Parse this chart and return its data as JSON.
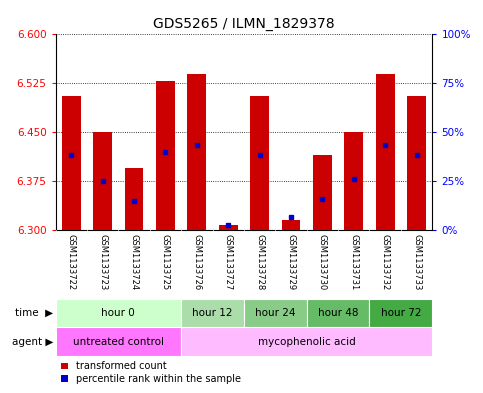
{
  "title": "GDS5265 / ILMN_1829378",
  "samples": [
    "GSM1133722",
    "GSM1133723",
    "GSM1133724",
    "GSM1133725",
    "GSM1133726",
    "GSM1133727",
    "GSM1133728",
    "GSM1133729",
    "GSM1133730",
    "GSM1133731",
    "GSM1133732",
    "GSM1133733"
  ],
  "bar_values": [
    6.505,
    6.45,
    6.395,
    6.528,
    6.538,
    6.308,
    6.505,
    6.315,
    6.415,
    6.45,
    6.538,
    6.505
  ],
  "percentile_values": [
    6.415,
    6.375,
    6.345,
    6.42,
    6.43,
    6.308,
    6.415,
    6.32,
    6.348,
    6.378,
    6.43,
    6.415
  ],
  "bar_base": 6.3,
  "ylim_min": 6.3,
  "ylim_max": 6.6,
  "yticks_left": [
    6.3,
    6.375,
    6.45,
    6.525,
    6.6
  ],
  "yticks_right_pct": [
    0,
    25,
    50,
    75,
    100
  ],
  "bar_color": "#cc0000",
  "pct_color": "#0000cc",
  "time_groups": [
    {
      "label": "hour 0",
      "cols": [
        0,
        1,
        2,
        3
      ],
      "color": "#ccffcc"
    },
    {
      "label": "hour 12",
      "cols": [
        4,
        5
      ],
      "color": "#aaddaa"
    },
    {
      "label": "hour 24",
      "cols": [
        6,
        7
      ],
      "color": "#88cc88"
    },
    {
      "label": "hour 48",
      "cols": [
        8,
        9
      ],
      "color": "#66bb66"
    },
    {
      "label": "hour 72",
      "cols": [
        10,
        11
      ],
      "color": "#44aa44"
    }
  ],
  "agent_groups": [
    {
      "label": "untreated control",
      "cols": [
        0,
        1,
        2,
        3
      ],
      "color": "#ff77ff"
    },
    {
      "label": "mycophenolic acid",
      "cols": [
        4,
        5,
        6,
        7,
        8,
        9,
        10,
        11
      ],
      "color": "#ffbbff"
    }
  ],
  "sample_bg_color": "#cccccc",
  "background_color": "#ffffff"
}
